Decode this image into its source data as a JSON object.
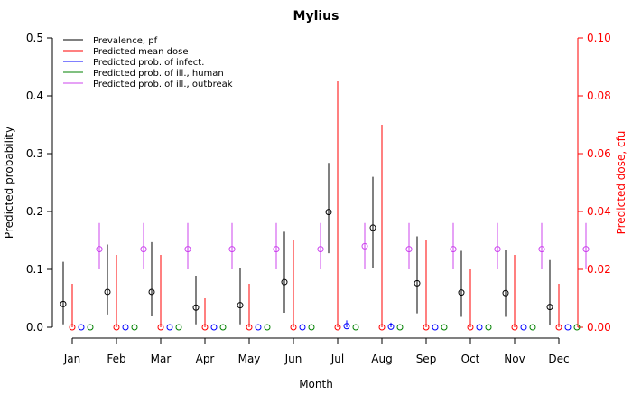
{
  "chart_data": {
    "type": "scatter",
    "title": "Mylius",
    "xlabel": "Month",
    "ylabel": "Predicted probability",
    "ylabel_right": "Predicted dose, cfu",
    "categories": [
      "Jan",
      "Feb",
      "Mar",
      "Apr",
      "May",
      "Jun",
      "Jul",
      "Aug",
      "Sep",
      "Oct",
      "Nov",
      "Dec"
    ],
    "ylim": [
      0,
      0.5
    ],
    "ylim_right": [
      0,
      0.1
    ],
    "yticks": [
      "0.0",
      "0.1",
      "0.2",
      "0.3",
      "0.4",
      "0.5"
    ],
    "yticks_right": [
      "0.00",
      "0.02",
      "0.04",
      "0.06",
      "0.08",
      "0.10"
    ],
    "legend_position": "top-left",
    "series": [
      {
        "name": "Prevalence, pf",
        "color": "#000000",
        "axis": "left",
        "values": [
          0.04,
          0.061,
          0.061,
          0.034,
          0.038,
          0.078,
          0.199,
          0.172,
          0.076,
          0.06,
          0.059,
          0.035
        ],
        "lower": [
          0.005,
          0.022,
          0.02,
          0.005,
          0.005,
          0.025,
          0.128,
          0.103,
          0.024,
          0.018,
          0.018,
          0.004
        ],
        "upper": [
          0.113,
          0.143,
          0.147,
          0.089,
          0.102,
          0.165,
          0.284,
          0.26,
          0.157,
          0.132,
          0.134,
          0.116
        ]
      },
      {
        "name": "Predicted mean dose",
        "color": "#ff0000",
        "axis": "right",
        "values": [
          0.0,
          0.0,
          0.0,
          0.0,
          0.0,
          0.0,
          0.0,
          0.0,
          0.0,
          0.0,
          0.0,
          0.0
        ],
        "lower": [
          0.0,
          0.0,
          0.0,
          0.0,
          0.0,
          0.0,
          0.0,
          0.0,
          0.0,
          0.0,
          0.0,
          0.0
        ],
        "upper": [
          0.015,
          0.025,
          0.025,
          0.01,
          0.015,
          0.03,
          0.085,
          0.07,
          0.03,
          0.02,
          0.025,
          0.015
        ]
      },
      {
        "name": "Predicted prob. of infect.",
        "color": "#0000ff",
        "axis": "left",
        "values": [
          0.0,
          0.0,
          0.0,
          0.0,
          0.0,
          0.0,
          0.002,
          0.001,
          0.0,
          0.0,
          0.0,
          0.0
        ],
        "lower": [
          0.0,
          0.0,
          0.0,
          0.0,
          0.0,
          0.0,
          0.0,
          0.0,
          0.0,
          0.0,
          0.0,
          0.0
        ],
        "upper": [
          0.0,
          0.0,
          0.0,
          0.0,
          0.0,
          0.0,
          0.012,
          0.008,
          0.0,
          0.0,
          0.0,
          0.0
        ]
      },
      {
        "name": "Predicted prob. of ill., human",
        "color": "#008000",
        "axis": "left",
        "values": [
          0.0,
          0.0,
          0.0,
          0.0,
          0.0,
          0.0,
          0.0,
          0.0,
          0.0,
          0.0,
          0.0,
          0.0
        ],
        "lower": [
          0.0,
          0.0,
          0.0,
          0.0,
          0.0,
          0.0,
          0.0,
          0.0,
          0.0,
          0.0,
          0.0,
          0.0
        ],
        "upper": [
          0.0,
          0.0,
          0.0,
          0.0,
          0.0,
          0.0,
          0.0,
          0.0,
          0.0,
          0.0,
          0.0,
          0.0
        ]
      },
      {
        "name": "Predicted prob. of ill., outbreak",
        "color": "#cc44ee",
        "axis": "left",
        "values": [
          0.135,
          0.135,
          0.135,
          0.135,
          0.135,
          0.135,
          0.14,
          0.135,
          0.135,
          0.135,
          0.135,
          0.135
        ],
        "lower": [
          0.1,
          0.1,
          0.1,
          0.1,
          0.1,
          0.1,
          0.1,
          0.1,
          0.1,
          0.1,
          0.1,
          0.1
        ],
        "upper": [
          0.18,
          0.18,
          0.18,
          0.18,
          0.18,
          0.18,
          0.18,
          0.18,
          0.18,
          0.18,
          0.18,
          0.18
        ]
      }
    ]
  }
}
